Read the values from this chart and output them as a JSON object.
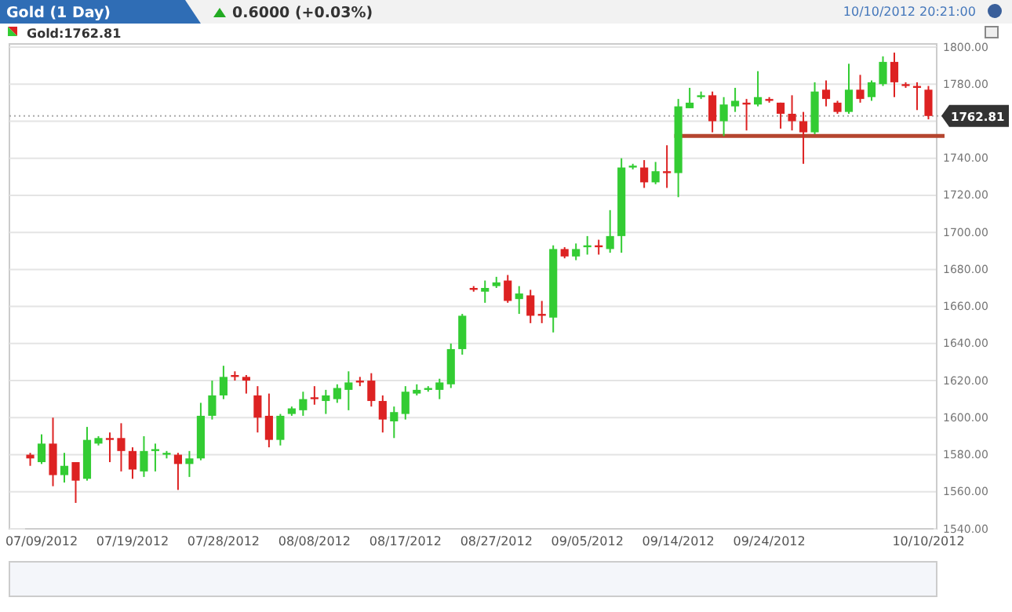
{
  "chart_data": {
    "type": "candlestick",
    "title": "Gold (1 Day)",
    "subtitle": "0.6000 (+0.03%)",
    "annotations": [
      "10/10/2012 20:21:00",
      "Gold:1762.81"
    ],
    "categories": [
      null,
      "07/09/2012",
      null,
      null,
      null,
      null,
      null,
      null,
      null,
      "07/19/2012",
      null,
      null,
      null,
      null,
      null,
      null,
      null,
      "07/28/2012",
      null,
      null,
      null,
      null,
      null,
      null,
      null,
      "08/08/2012",
      null,
      null,
      null,
      null,
      null,
      null,
      null,
      "08/17/2012",
      null,
      null,
      null,
      null,
      null,
      null,
      null,
      "08/27/2012",
      null,
      null,
      null,
      null,
      null,
      null,
      null,
      "09/05/2012",
      null,
      null,
      null,
      null,
      null,
      null,
      null,
      "09/14/2012",
      null,
      null,
      null,
      null,
      null,
      null,
      null,
      "09/24/2012",
      null,
      null,
      null,
      null,
      null,
      null,
      null,
      null,
      null,
      null,
      null,
      null,
      null,
      "10/10/2012"
    ],
    "ohlc": [
      [
        1580,
        1581,
        1574,
        1578
      ],
      [
        1576,
        1591,
        1575,
        1586
      ],
      [
        1586,
        1600,
        1563,
        1569
      ],
      [
        1569,
        1581,
        1565,
        1574
      ],
      [
        1576,
        1576,
        1554,
        1566
      ],
      [
        1567,
        1595,
        1566,
        1588
      ],
      [
        1586,
        1590,
        1585,
        1589
      ],
      [
        1589,
        1592,
        1576,
        1588
      ],
      [
        1589,
        1597,
        1571,
        1582
      ],
      [
        1582,
        1584,
        1567,
        1572
      ],
      [
        1571,
        1590,
        1568,
        1582
      ],
      [
        1582,
        1586,
        1571,
        1583
      ],
      [
        1580,
        1582,
        1578,
        1581
      ],
      [
        1580,
        1581,
        1561,
        1575
      ],
      [
        1575,
        1582,
        1568,
        1578
      ],
      [
        1578,
        1608,
        1577,
        1601
      ],
      [
        1601,
        1620,
        1599,
        1612
      ],
      [
        1612,
        1628,
        1610,
        1622
      ],
      [
        1623,
        1625,
        1620,
        1622
      ],
      [
        1622,
        1623,
        1613,
        1620
      ],
      [
        1612,
        1617,
        1592,
        1600
      ],
      [
        1601,
        1613,
        1584,
        1588
      ],
      [
        1588,
        1602,
        1585,
        1601
      ],
      [
        1602,
        1606,
        1601,
        1605
      ],
      [
        1604,
        1614,
        1601,
        1610
      ],
      [
        1611,
        1617,
        1607,
        1610
      ],
      [
        1609,
        1615,
        1602,
        1612
      ],
      [
        1610,
        1618,
        1608,
        1616
      ],
      [
        1615,
        1625,
        1604,
        1619
      ],
      [
        1620,
        1622,
        1617,
        1619
      ],
      [
        1620,
        1624,
        1606,
        1609
      ],
      [
        1609,
        1612,
        1592,
        1599
      ],
      [
        1598,
        1606,
        1589,
        1603
      ],
      [
        1602,
        1617,
        1599,
        1614
      ],
      [
        1613,
        1618,
        1612,
        1615
      ],
      [
        1615,
        1617,
        1614,
        1616
      ],
      [
        1615,
        1621,
        1610,
        1619
      ],
      [
        1618,
        1640,
        1616,
        1637
      ],
      [
        1637,
        1656,
        1634,
        1655
      ],
      [
        1670,
        1671,
        1668,
        1669
      ],
      [
        1668,
        1674,
        1662,
        1670
      ],
      [
        1671,
        1676,
        1670,
        1673
      ],
      [
        1674,
        1677,
        1662,
        1663
      ],
      [
        1664,
        1671,
        1656,
        1667
      ],
      [
        1666,
        1669,
        1651,
        1655
      ],
      [
        1656,
        1663,
        1651,
        1655
      ],
      [
        1654,
        1693,
        1646,
        1691
      ],
      [
        1691,
        1692,
        1686,
        1687
      ],
      [
        1687,
        1694,
        1685,
        1691
      ],
      [
        1692,
        1698,
        1688,
        1693
      ],
      [
        1693,
        1696,
        1688,
        1692
      ],
      [
        1691,
        1712,
        1689,
        1698
      ],
      [
        1698,
        1740,
        1689,
        1735
      ],
      [
        1735,
        1737,
        1734,
        1736
      ],
      [
        1735,
        1739,
        1724,
        1727
      ],
      [
        1727,
        1738,
        1726,
        1733
      ],
      [
        1733,
        1747,
        1724,
        1732
      ],
      [
        1732,
        1772,
        1719,
        1768
      ],
      [
        1767,
        1778,
        1767,
        1770
      ],
      [
        1773,
        1776,
        1772,
        1774
      ],
      [
        1774,
        1776,
        1754,
        1760
      ],
      [
        1760,
        1773,
        1752,
        1769
      ],
      [
        1768,
        1778,
        1765,
        1771
      ],
      [
        1770,
        1772,
        1755,
        1769
      ],
      [
        1769,
        1787,
        1768,
        1773
      ],
      [
        1772,
        1773,
        1770,
        1771
      ],
      [
        1770,
        1770,
        1756,
        1764
      ],
      [
        1764,
        1774,
        1755,
        1760
      ],
      [
        1760,
        1765,
        1737,
        1754
      ],
      [
        1754,
        1781,
        1753,
        1776
      ],
      [
        1777,
        1782,
        1768,
        1772
      ],
      [
        1770,
        1771,
        1764,
        1765
      ],
      [
        1765,
        1791,
        1764,
        1777
      ],
      [
        1777,
        1785,
        1770,
        1772
      ],
      [
        1773,
        1782,
        1771,
        1781
      ],
      [
        1780,
        1795,
        1779,
        1792
      ],
      [
        1792,
        1797,
        1773,
        1781
      ],
      [
        1780,
        1781,
        1778,
        1779
      ],
      [
        1779,
        1781,
        1766,
        1778
      ],
      [
        1777,
        1779,
        1761,
        1762.81
      ]
    ],
    "colors": [
      "#dd2222",
      "#33cc33",
      "#dd2222",
      "#33cc33",
      "#dd2222",
      "#33cc33",
      "#33cc33",
      "#dd2222",
      "#dd2222",
      "#dd2222",
      "#33cc33",
      "#33cc33",
      "#33cc33",
      "#dd2222",
      "#33cc33",
      "#33cc33",
      "#33cc33",
      "#33cc33",
      "#dd2222",
      "#dd2222",
      "#dd2222",
      "#dd2222",
      "#33cc33",
      "#33cc33",
      "#33cc33",
      "#dd2222",
      "#33cc33",
      "#33cc33",
      "#33cc33",
      "#dd2222",
      "#dd2222",
      "#dd2222",
      "#33cc33",
      "#33cc33",
      "#33cc33",
      "#33cc33",
      "#33cc33",
      "#33cc33",
      "#33cc33",
      "#dd2222",
      "#33cc33",
      "#33cc33",
      "#dd2222",
      "#33cc33",
      "#dd2222",
      "#dd2222",
      "#33cc33",
      "#dd2222",
      "#33cc33",
      "#33cc33",
      "#dd2222",
      "#33cc33",
      "#33cc33",
      "#33cc33",
      "#dd2222",
      "#33cc33",
      "#dd2222",
      "#33cc33",
      "#33cc33",
      "#33cc33",
      "#dd2222",
      "#33cc33",
      "#33cc33",
      "#dd2222",
      "#33cc33",
      "#dd2222",
      "#dd2222",
      "#dd2222",
      "#dd2222",
      "#33cc33",
      "#dd2222",
      "#dd2222",
      "#33cc33",
      "#dd2222",
      "#33cc33",
      "#33cc33",
      "#dd2222",
      "#dd2222",
      "#dd2222",
      "#dd2222"
    ],
    "ylim": [
      1540,
      1800
    ],
    "yticks": [
      {
        "value": 1540,
        "label": "1540.00"
      },
      {
        "value": 1560,
        "label": "1560.00"
      },
      {
        "value": 1580,
        "label": "1580.00"
      },
      {
        "value": 1600,
        "label": "1600.00"
      },
      {
        "value": 1620,
        "label": "1620.00"
      },
      {
        "value": 1640,
        "label": "1640.00"
      },
      {
        "value": 1660,
        "label": "1660.00"
      },
      {
        "value": 1680,
        "label": "1680.00"
      },
      {
        "value": 1700,
        "label": "1700.00"
      },
      {
        "value": 1720,
        "label": "1720.00"
      },
      {
        "value": 1740,
        "label": "1740.00"
      },
      {
        "value": 1760,
        "label": null
      },
      {
        "value": 1780,
        "label": "1780.00"
      },
      {
        "value": 1800,
        "label": "1800.00"
      }
    ],
    "ref_lines": [
      {
        "axis": "y",
        "value": 1752,
        "color": "#b5452f",
        "line_style": "solid"
      },
      {
        "axis": "y",
        "value": 1762.81,
        "label": "1762.81",
        "color": "#aaaaaa",
        "line_style": "dotted"
      }
    ],
    "grid": "y"
  }
}
